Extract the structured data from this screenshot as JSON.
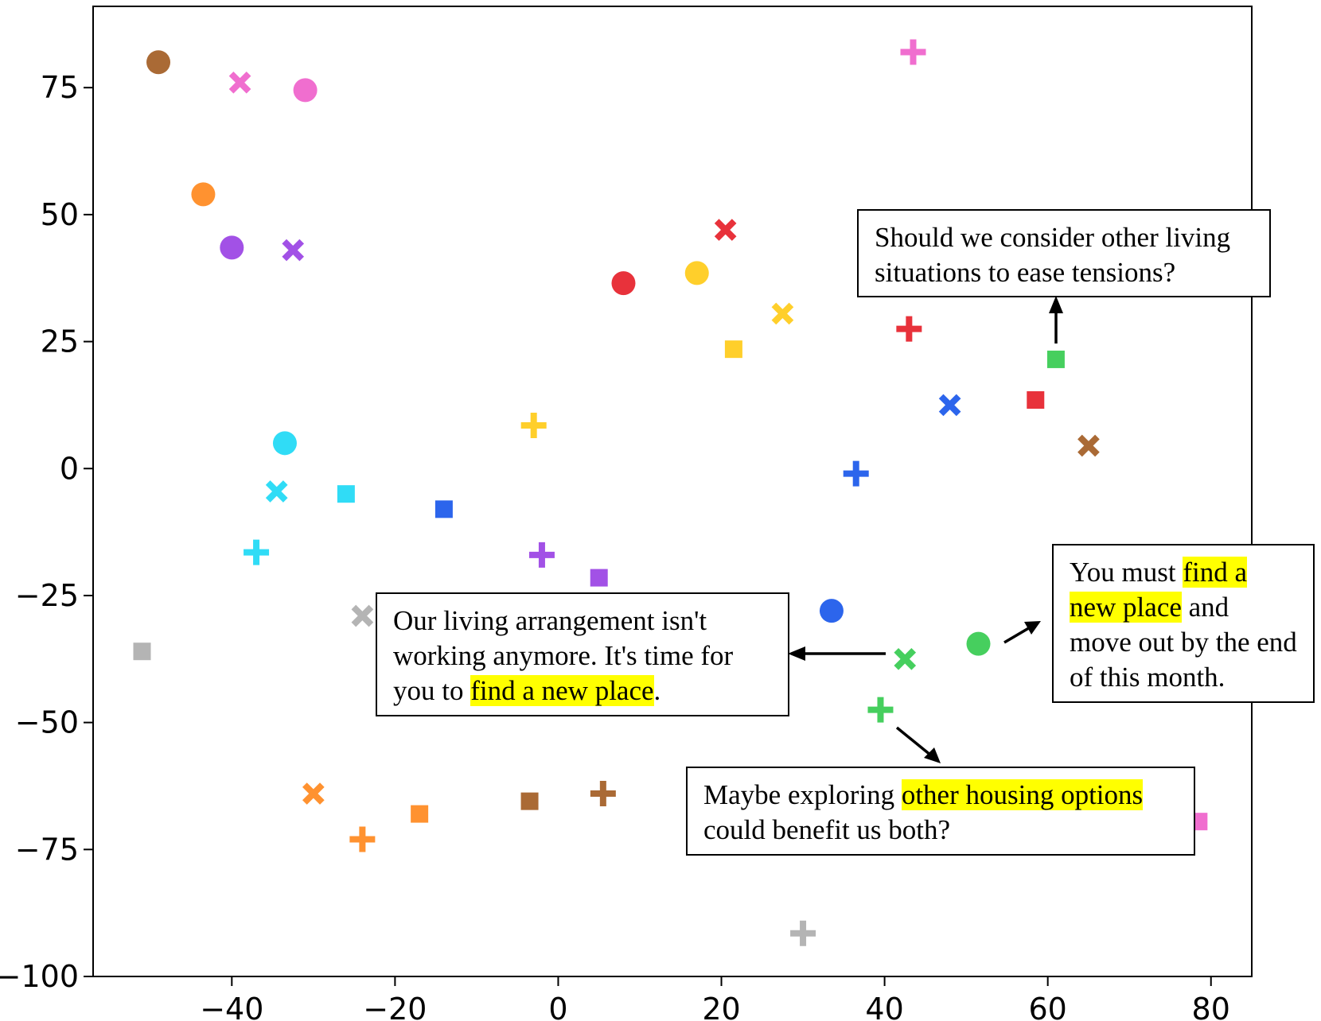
{
  "chart_data": {
    "type": "scatter",
    "title": "",
    "xlabel": "",
    "ylabel": "",
    "xlim": [
      -57,
      85
    ],
    "ylim": [
      -100,
      91
    ],
    "x_ticks": [
      {
        "value": -40,
        "label": "−40"
      },
      {
        "value": -20,
        "label": "−20"
      },
      {
        "value": 0,
        "label": "0"
      },
      {
        "value": 20,
        "label": "20"
      },
      {
        "value": 40,
        "label": "40"
      },
      {
        "value": 60,
        "label": "60"
      },
      {
        "value": 80,
        "label": "80"
      }
    ],
    "y_ticks": [
      {
        "value": 75,
        "label": "75"
      },
      {
        "value": 50,
        "label": "50"
      },
      {
        "value": 25,
        "label": "25"
      },
      {
        "value": 0,
        "label": "0"
      },
      {
        "value": -25,
        "label": "−25"
      },
      {
        "value": -50,
        "label": "−50"
      },
      {
        "value": -75,
        "label": "−75"
      },
      {
        "value": -100,
        "label": "−100"
      }
    ],
    "grid": false,
    "legend": "none",
    "colors": {
      "brown": "#aa6a35",
      "pink": "#f06ecf",
      "orange": "#ff9230",
      "purple": "#a251e6",
      "red": "#e8323b",
      "yellow": "#ffcf2b",
      "cyan": "#30dcf6",
      "blue": "#2c65ec",
      "gray": "#b4b4b4",
      "green": "#46cf5e"
    },
    "points": [
      {
        "x": -49,
        "y": 80,
        "marker": "circle",
        "color": "brown"
      },
      {
        "x": -39,
        "y": 76,
        "marker": "x",
        "color": "pink"
      },
      {
        "x": -31,
        "y": 74.5,
        "marker": "circle",
        "color": "pink"
      },
      {
        "x": 43.5,
        "y": 82,
        "marker": "plus",
        "color": "pink"
      },
      {
        "x": -43.5,
        "y": 54,
        "marker": "circle",
        "color": "orange"
      },
      {
        "x": -40,
        "y": 43.5,
        "marker": "circle",
        "color": "purple"
      },
      {
        "x": -32.5,
        "y": 43,
        "marker": "x",
        "color": "purple"
      },
      {
        "x": 8,
        "y": 36.5,
        "marker": "circle",
        "color": "red"
      },
      {
        "x": 17,
        "y": 38.5,
        "marker": "circle",
        "color": "yellow"
      },
      {
        "x": 20.5,
        "y": 47,
        "marker": "x",
        "color": "red"
      },
      {
        "x": 27.5,
        "y": 30.5,
        "marker": "x",
        "color": "yellow"
      },
      {
        "x": 21.5,
        "y": 23.5,
        "marker": "square",
        "color": "yellow"
      },
      {
        "x": 43,
        "y": 27.5,
        "marker": "plus",
        "color": "red"
      },
      {
        "x": 61,
        "y": 21.5,
        "marker": "square",
        "color": "green"
      },
      {
        "x": 48,
        "y": 12.5,
        "marker": "x",
        "color": "blue"
      },
      {
        "x": 58.5,
        "y": 13.5,
        "marker": "square",
        "color": "red"
      },
      {
        "x": 65,
        "y": 4.5,
        "marker": "x",
        "color": "brown"
      },
      {
        "x": -3,
        "y": 8.5,
        "marker": "plus",
        "color": "yellow"
      },
      {
        "x": -33.5,
        "y": 5,
        "marker": "circle",
        "color": "cyan"
      },
      {
        "x": 36.5,
        "y": -1,
        "marker": "plus",
        "color": "blue"
      },
      {
        "x": -34.5,
        "y": -4.5,
        "marker": "x",
        "color": "cyan"
      },
      {
        "x": -26,
        "y": -5,
        "marker": "square",
        "color": "cyan"
      },
      {
        "x": -14,
        "y": -8,
        "marker": "square",
        "color": "blue"
      },
      {
        "x": -37,
        "y": -16.5,
        "marker": "plus",
        "color": "cyan"
      },
      {
        "x": -2,
        "y": -17,
        "marker": "plus",
        "color": "purple"
      },
      {
        "x": 5,
        "y": -21.5,
        "marker": "square",
        "color": "purple"
      },
      {
        "x": 33.5,
        "y": -28,
        "marker": "circle",
        "color": "blue"
      },
      {
        "x": -24,
        "y": -29,
        "marker": "x",
        "color": "gray"
      },
      {
        "x": -51,
        "y": -36,
        "marker": "square",
        "color": "gray"
      },
      {
        "x": 51.5,
        "y": -34.5,
        "marker": "circle",
        "color": "green"
      },
      {
        "x": 42.5,
        "y": -37.5,
        "marker": "x",
        "color": "green"
      },
      {
        "x": 39.5,
        "y": -47.5,
        "marker": "plus",
        "color": "green"
      },
      {
        "x": -30,
        "y": -64,
        "marker": "x",
        "color": "orange"
      },
      {
        "x": -17,
        "y": -68,
        "marker": "square",
        "color": "orange"
      },
      {
        "x": -24,
        "y": -73,
        "marker": "plus",
        "color": "orange"
      },
      {
        "x": -3.5,
        "y": -65.5,
        "marker": "square",
        "color": "brown"
      },
      {
        "x": 5.5,
        "y": -64,
        "marker": "plus",
        "color": "brown"
      },
      {
        "x": 78.5,
        "y": -69.5,
        "marker": "square",
        "color": "pink"
      },
      {
        "x": 30,
        "y": -91.5,
        "marker": "plus",
        "color": "gray"
      }
    ],
    "annotations": {
      "top": {
        "text": "Should we consider other living situations to ease tensions?"
      },
      "left": {
        "before": "Our living arrangement isn't working anymore. It's time for you to ",
        "highlight": "find a new place",
        "after": "."
      },
      "right": {
        "before": "You must ",
        "highlight_1": "find a",
        "middle": " ",
        "highlight_2": "new place",
        "after": " and move out by the end of this month."
      },
      "bottom": {
        "before": "Maybe exploring ",
        "highlight": "other housing options",
        "after": " could benefit us both?"
      }
    },
    "highlight_color": "#ffff00"
  }
}
